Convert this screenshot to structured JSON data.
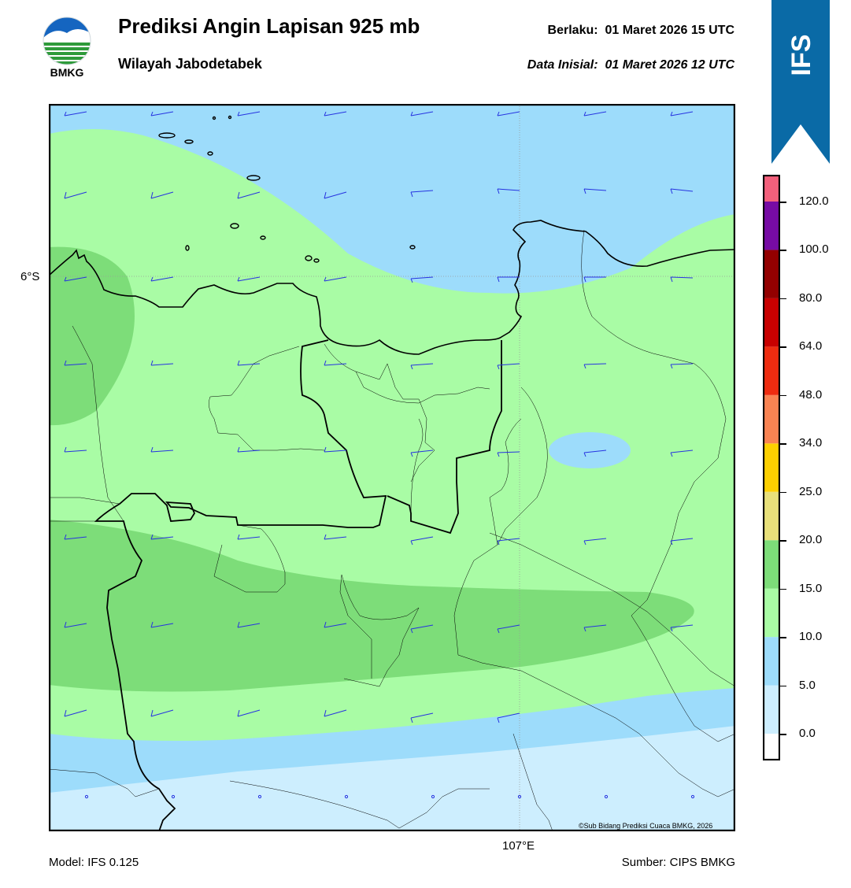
{
  "header": {
    "title": "Prediksi Angin Lapisan 925 mb",
    "subtitle": "Wilayah Jabodetabek",
    "valid_label": "Berlaku:",
    "valid_time": "01 Maret 2026 15 UTC",
    "init_label": "Data Inisial:",
    "init_time": "01 Maret 2026 12 UTC"
  },
  "logo": {
    "text": "BMKG",
    "icon": "bmkg-logo-icon"
  },
  "banner": {
    "text": "IFS",
    "color": "#0a6aa6"
  },
  "map": {
    "lat_label": "6°S",
    "lon_label": "107°E",
    "credit": "©Sub Bidang Prediksi Cuaca BMKG, 2026",
    "colors": {
      "light_blue": "#cdeefe",
      "blue": "#9ddcfb",
      "light_green": "#a9fca5",
      "green": "#7ddd79"
    }
  },
  "colorbar": {
    "ticks": [
      "0.0",
      "5.0",
      "10.0",
      "15.0",
      "20.0",
      "25.0",
      "34.0",
      "48.0",
      "64.0",
      "80.0",
      "100.0",
      "120.0"
    ],
    "colors": [
      "#ffffff",
      "#cdeefe",
      "#9ddcfb",
      "#a9fca5",
      "#7ddd79",
      "#e8e07a",
      "#fdd000",
      "#f98352",
      "#ee2c10",
      "#c80000",
      "#930000",
      "#770ba4",
      "#f3607c"
    ]
  },
  "footer": {
    "model": "Model: IFS 0.125",
    "source": "Sumber: CIPS BMKG"
  }
}
